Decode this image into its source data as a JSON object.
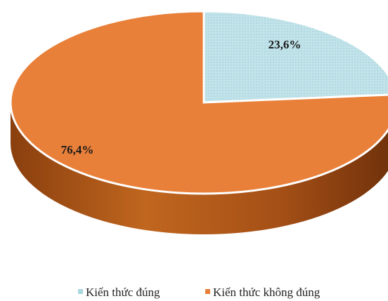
{
  "chart_data": {
    "type": "pie",
    "style": "3d",
    "slices": [
      {
        "label": "Kiến thức đúng",
        "value": 23.6,
        "display": "23,6%",
        "color": "#bfe3ea",
        "pattern": "dotted"
      },
      {
        "label": "Kiến thức không đúng",
        "value": 76.4,
        "display": "76,4%",
        "color": "#e8803a",
        "side_color": "#b35a1c"
      }
    ],
    "legend": {
      "position": "bottom"
    }
  }
}
